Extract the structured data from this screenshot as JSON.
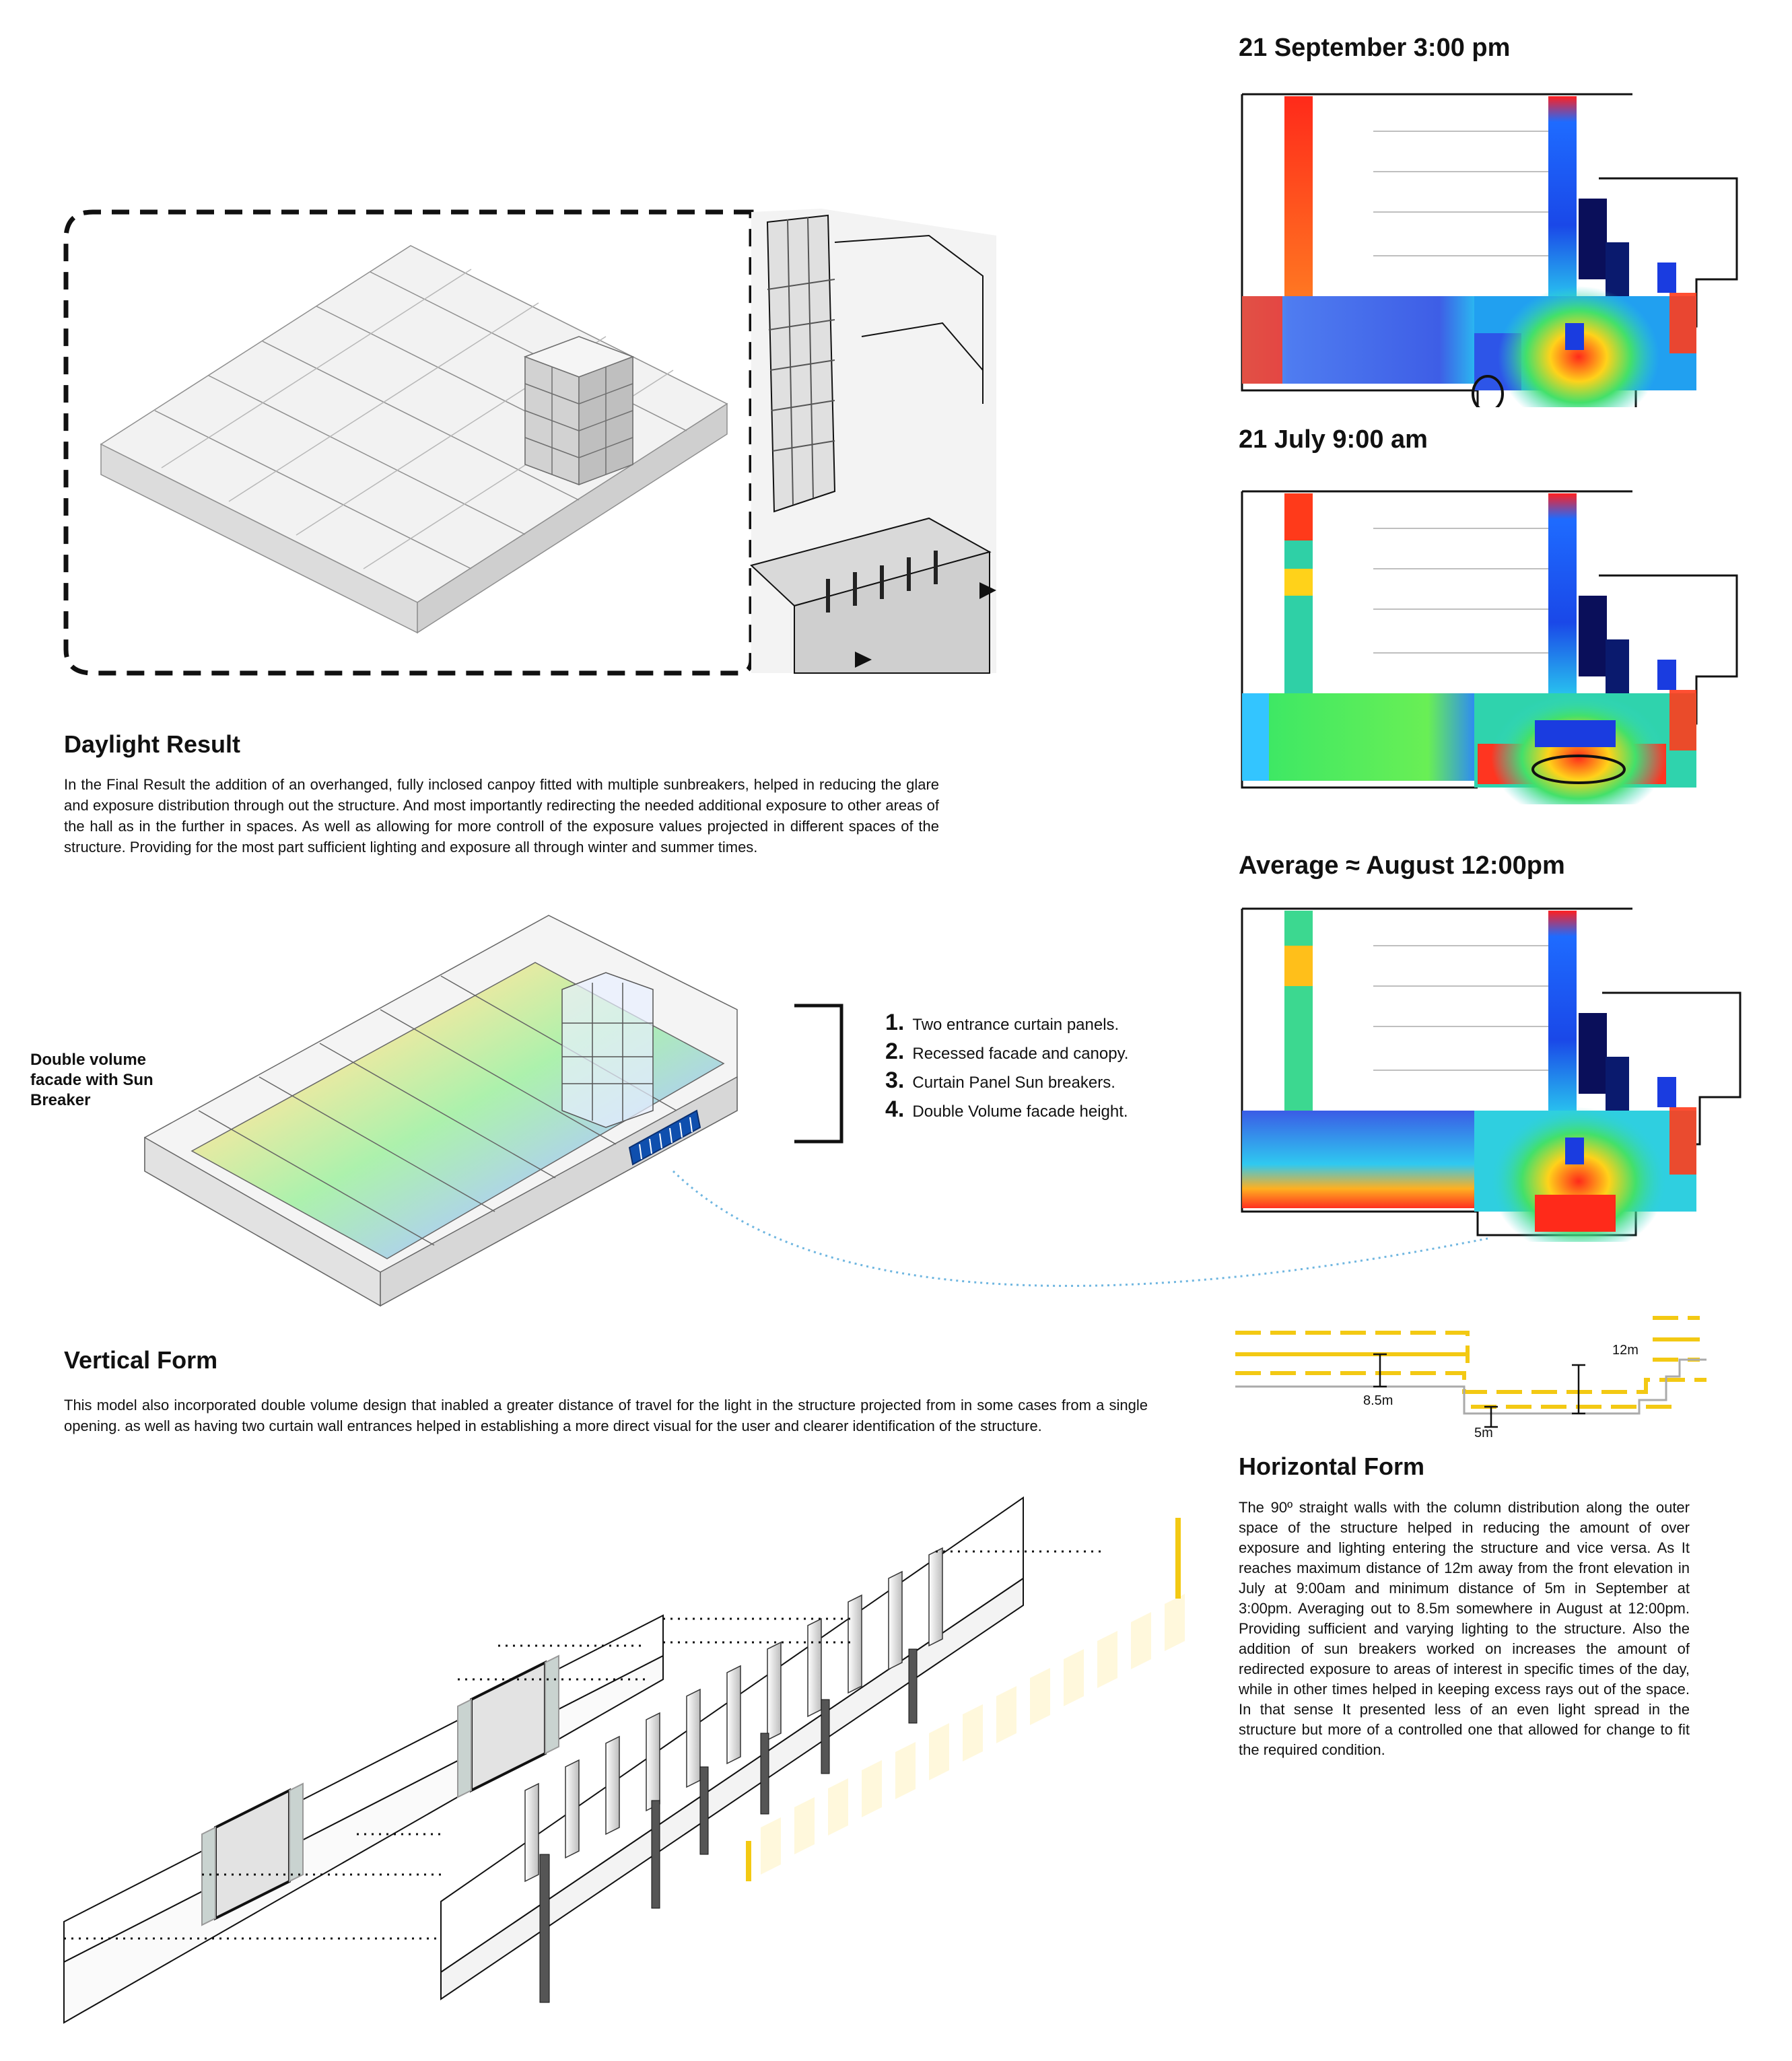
{
  "maps": {
    "titles": [
      "21 September 3:00 pm",
      "21 July 9:00 am",
      "Average ≈ August 12:00pm"
    ]
  },
  "daylight": {
    "title": "Daylight Result",
    "body": "In the Final Result the addition of an overhanged, fully inclosed canpoy fitted with multiple sunbreakers, helped in reducing the glare and exposure distribution through out the structure. And most importantly redirecting the needed additional exposure to other areas of the hall as in the further in spaces. As well as allowing for more controll of the exposure values projected in different spaces of the structure. Providing for the most part sufficient lighting and exposure all through winter and summer times."
  },
  "diagram": {
    "side_label": "Double volume facade with Sun Breaker",
    "items": [
      {
        "num": "1.",
        "text": "Two entrance curtain panels."
      },
      {
        "num": "2.",
        "text": "Recessed facade and canopy."
      },
      {
        "num": "3.",
        "text": "Curtain Panel Sun breakers."
      },
      {
        "num": "4.",
        "text": "Double Volume facade height."
      }
    ]
  },
  "section_dims": {
    "d1": "12m",
    "d2": "8.5m",
    "d3": "5m"
  },
  "vertical": {
    "title": "Vertical Form",
    "body": "This model also incorporated double volume design that inabled a greater distance of travel for the light in the structure projected from in some cases from a single opening. as well as having two curtain wall entrances helped in establishing a more direct visual for the user and clearer identification of the structure."
  },
  "horizontal": {
    "title": "Horizontal Form",
    "body": "The 90º straight walls with the column distribution along the outer space of the structure helped in reducing the amount of over exposure and lighting entering the structure and vice versa. As It reaches maximum distance of 12m away from the front elevation in July at 9:00am and minimum distance of 5m in September at 3:00pm. Averaging out to 8.5m somewhere in August at 12:00pm. Providing sufficient and varying lighting to the structure. Also the addition of sun breakers worked on increases the amount of redirected exposure to areas of interest in specific times of the day, while in other times helped in keeping excess rays out of the space. In that sense It presented less of an even light spread in the structure but more of a controlled one that allowed for change to fit the required condition."
  },
  "colors": {
    "accent_yellow": "#f3c913",
    "dotted_blue": "#6fb6e0"
  }
}
